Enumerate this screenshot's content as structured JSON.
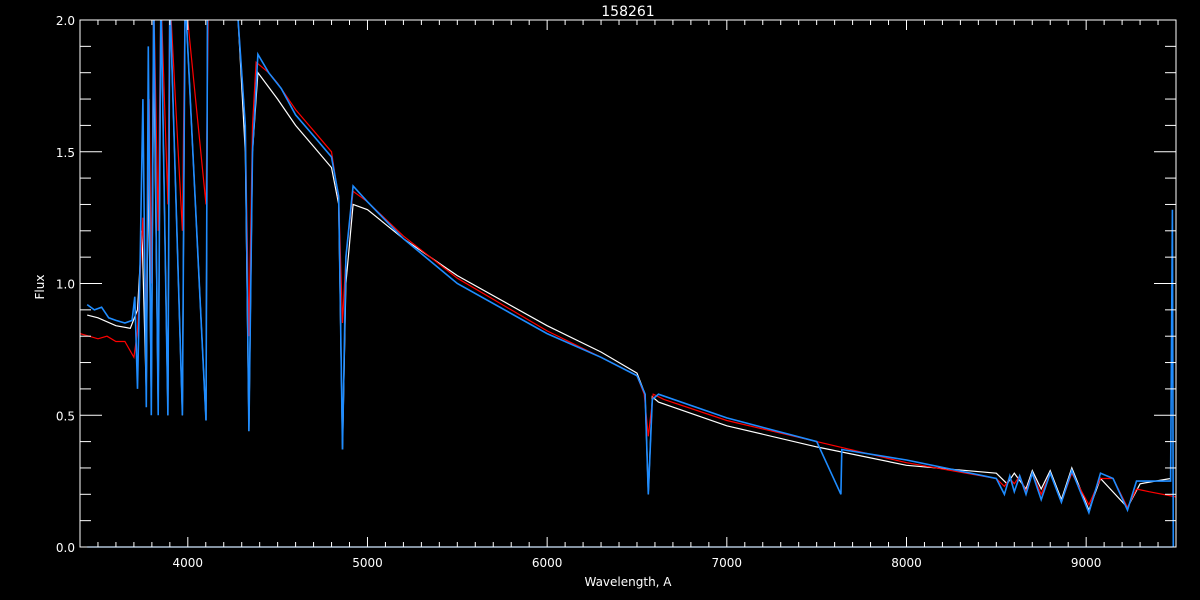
{
  "chart_data": {
    "type": "line",
    "title": "158261",
    "xlabel": "Wavelength, A",
    "ylabel": "Flux",
    "xlim": [
      3400,
      9500
    ],
    "ylim": [
      0.0,
      2.0
    ],
    "xticks": [
      4000,
      5000,
      6000,
      7000,
      8000,
      9000
    ],
    "xtick_labels": [
      "4000",
      "5000",
      "6000",
      "7000",
      "8000",
      "9000"
    ],
    "yticks": [
      0.0,
      0.5,
      1.0,
      1.5,
      2.0
    ],
    "ytick_labels": [
      "0.0",
      "0.5",
      "1.0",
      "1.5",
      "2.0"
    ],
    "grid": false,
    "background": "#000000",
    "series": [
      {
        "color": "#ffffff",
        "points": [
          [
            3440,
            0.88
          ],
          [
            3500,
            0.87
          ],
          [
            3600,
            0.84
          ],
          [
            3680,
            0.83
          ],
          [
            3720,
            0.9
          ],
          [
            3745,
            1.2
          ],
          [
            3769,
            0.58
          ],
          [
            3780,
            1.5
          ],
          [
            3797,
            0.54
          ],
          [
            3810,
            1.9
          ],
          [
            3835,
            0.52
          ],
          [
            3850,
            2.1
          ],
          [
            3889,
            0.5
          ],
          [
            3900,
            2.1
          ],
          [
            3970,
            0.5
          ],
          [
            3985,
            2.1
          ],
          [
            4101,
            0.48
          ],
          [
            4110,
            2.1
          ],
          [
            4280,
            2.0
          ],
          [
            4320,
            1.5
          ],
          [
            4340,
            0.44
          ],
          [
            4360,
            1.5
          ],
          [
            4390,
            1.8
          ],
          [
            4500,
            1.7
          ],
          [
            4600,
            1.6
          ],
          [
            4700,
            1.52
          ],
          [
            4800,
            1.44
          ],
          [
            4840,
            1.3
          ],
          [
            4861,
            0.37
          ],
          [
            4880,
            1.0
          ],
          [
            4920,
            1.3
          ],
          [
            5000,
            1.28
          ],
          [
            5200,
            1.17
          ],
          [
            5500,
            1.03
          ],
          [
            6000,
            0.84
          ],
          [
            6300,
            0.74
          ],
          [
            6500,
            0.66
          ],
          [
            6545,
            0.58
          ],
          [
            6563,
            0.2
          ],
          [
            6585,
            0.57
          ],
          [
            6620,
            0.55
          ],
          [
            7000,
            0.46
          ],
          [
            7500,
            0.38
          ],
          [
            8000,
            0.31
          ],
          [
            8500,
            0.28
          ],
          [
            8560,
            0.24
          ],
          [
            8600,
            0.28
          ],
          [
            8665,
            0.22
          ],
          [
            8700,
            0.29
          ],
          [
            8750,
            0.22
          ],
          [
            8800,
            0.29
          ],
          [
            8862,
            0.18
          ],
          [
            8920,
            0.3
          ],
          [
            9015,
            0.14
          ],
          [
            9080,
            0.26
          ],
          [
            9230,
            0.15
          ],
          [
            9300,
            0.24
          ],
          [
            9470,
            0.26
          ]
        ]
      },
      {
        "color": "#ff0000",
        "points": [
          [
            3400,
            0.81
          ],
          [
            3450,
            0.8
          ],
          [
            3500,
            0.79
          ],
          [
            3550,
            0.8
          ],
          [
            3600,
            0.78
          ],
          [
            3650,
            0.78
          ],
          [
            3700,
            0.72
          ],
          [
            3720,
            0.82
          ],
          [
            3750,
            1.25
          ],
          [
            3769,
            0.9
          ],
          [
            3785,
            1.7
          ],
          [
            3797,
            1.0
          ],
          [
            3810,
            2.1
          ],
          [
            3835,
            1.2
          ],
          [
            3850,
            2.1
          ],
          [
            3889,
            1.3
          ],
          [
            3900,
            2.1
          ],
          [
            3970,
            1.2
          ],
          [
            3985,
            2.1
          ],
          [
            4101,
            1.3
          ],
          [
            4115,
            2.1
          ],
          [
            4280,
            2.0
          ],
          [
            4320,
            1.6
          ],
          [
            4340,
            0.8
          ],
          [
            4360,
            1.6
          ],
          [
            4380,
            1.84
          ],
          [
            4450,
            1.8
          ],
          [
            4500,
            1.76
          ],
          [
            4600,
            1.66
          ],
          [
            4700,
            1.58
          ],
          [
            4800,
            1.5
          ],
          [
            4840,
            1.32
          ],
          [
            4861,
            0.85
          ],
          [
            4880,
            1.1
          ],
          [
            4920,
            1.35
          ],
          [
            5000,
            1.31
          ],
          [
            5200,
            1.18
          ],
          [
            5500,
            1.02
          ],
          [
            6000,
            0.82
          ],
          [
            6300,
            0.72
          ],
          [
            6500,
            0.65
          ],
          [
            6540,
            0.58
          ],
          [
            6563,
            0.42
          ],
          [
            6590,
            0.58
          ],
          [
            6650,
            0.56
          ],
          [
            7000,
            0.48
          ],
          [
            7500,
            0.4
          ],
          [
            8000,
            0.32
          ],
          [
            8500,
            0.26
          ],
          [
            8545,
            0.23
          ],
          [
            8575,
            0.26
          ],
          [
            8600,
            0.24
          ],
          [
            8630,
            0.27
          ],
          [
            8665,
            0.21
          ],
          [
            8700,
            0.28
          ],
          [
            8750,
            0.2
          ],
          [
            8800,
            0.28
          ],
          [
            8862,
            0.17
          ],
          [
            8920,
            0.28
          ],
          [
            9015,
            0.16
          ],
          [
            9080,
            0.26
          ],
          [
            9150,
            0.26
          ],
          [
            9230,
            0.15
          ],
          [
            9280,
            0.22
          ],
          [
            9350,
            0.21
          ],
          [
            9500,
            0.19
          ]
        ]
      },
      {
        "color": "#1e8cff",
        "points": [
          [
            3440,
            0.92
          ],
          [
            3480,
            0.9
          ],
          [
            3520,
            0.91
          ],
          [
            3560,
            0.87
          ],
          [
            3600,
            0.86
          ],
          [
            3650,
            0.85
          ],
          [
            3690,
            0.86
          ],
          [
            3705,
            0.95
          ],
          [
            3720,
            0.6
          ],
          [
            3735,
            1.1
          ],
          [
            3750,
            1.7
          ],
          [
            3769,
            0.53
          ],
          [
            3780,
            1.9
          ],
          [
            3797,
            0.5
          ],
          [
            3810,
            2.1
          ],
          [
            3835,
            0.5
          ],
          [
            3850,
            2.1
          ],
          [
            3889,
            0.5
          ],
          [
            3900,
            2.1
          ],
          [
            3970,
            0.5
          ],
          [
            3985,
            2.1
          ],
          [
            4101,
            0.48
          ],
          [
            4110,
            2.1
          ],
          [
            4280,
            2.0
          ],
          [
            4320,
            1.6
          ],
          [
            4340,
            0.44
          ],
          [
            4360,
            1.5
          ],
          [
            4390,
            1.87
          ],
          [
            4450,
            1.8
          ],
          [
            4520,
            1.74
          ],
          [
            4600,
            1.64
          ],
          [
            4700,
            1.56
          ],
          [
            4800,
            1.48
          ],
          [
            4840,
            1.33
          ],
          [
            4861,
            0.37
          ],
          [
            4880,
            1.1
          ],
          [
            4920,
            1.37
          ],
          [
            5000,
            1.31
          ],
          [
            5200,
            1.17
          ],
          [
            5500,
            1.0
          ],
          [
            6000,
            0.81
          ],
          [
            6300,
            0.72
          ],
          [
            6500,
            0.65
          ],
          [
            6545,
            0.58
          ],
          [
            6563,
            0.2
          ],
          [
            6585,
            0.56
          ],
          [
            6620,
            0.58
          ],
          [
            7000,
            0.49
          ],
          [
            7500,
            0.4
          ],
          [
            7635,
            0.2
          ],
          [
            7640,
            0.37
          ],
          [
            8000,
            0.33
          ],
          [
            8500,
            0.26
          ],
          [
            8545,
            0.2
          ],
          [
            8575,
            0.27
          ],
          [
            8600,
            0.21
          ],
          [
            8630,
            0.27
          ],
          [
            8665,
            0.2
          ],
          [
            8700,
            0.28
          ],
          [
            8750,
            0.18
          ],
          [
            8800,
            0.28
          ],
          [
            8862,
            0.17
          ],
          [
            8920,
            0.29
          ],
          [
            9015,
            0.13
          ],
          [
            9080,
            0.28
          ],
          [
            9150,
            0.26
          ],
          [
            9230,
            0.14
          ],
          [
            9280,
            0.25
          ],
          [
            9350,
            0.25
          ],
          [
            9470,
            0.25
          ],
          [
            9480,
            1.28
          ],
          [
            9485,
            0.0
          ]
        ]
      },
      {
        "color": "#1e8cff",
        "points": [
          [
            3440,
            0.0
          ],
          [
            9480,
            0.0
          ]
        ]
      }
    ]
  }
}
